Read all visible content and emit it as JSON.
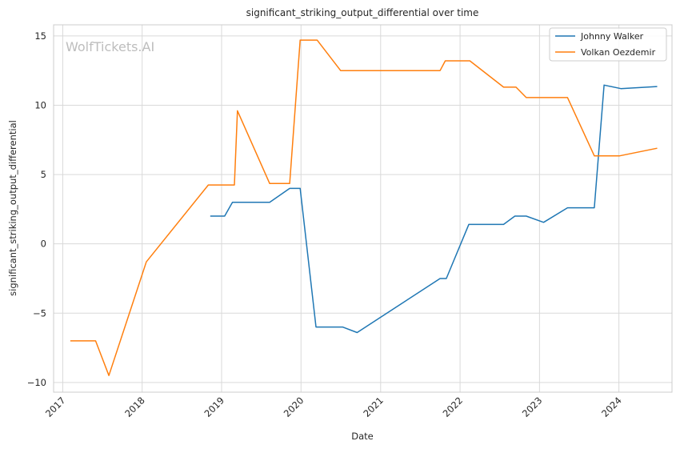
{
  "chart_data": {
    "type": "line",
    "title": "significant_striking_output_differential over time",
    "xlabel": "Date",
    "ylabel": "significant_striking_output_differential",
    "watermark": "WolfTickets.AI",
    "grid": true,
    "legend_position": "top-right",
    "x_ticks": [
      "2017",
      "2018",
      "2019",
      "2020",
      "2021",
      "2022",
      "2023",
      "2024"
    ],
    "y_ticks": [
      "−10",
      "−5",
      "0",
      "5",
      "10",
      "15"
    ],
    "y_tick_values": [
      -10,
      -5,
      0,
      5,
      10,
      15
    ],
    "xlim": [
      "2016-11-20",
      "2024-09-01"
    ],
    "ylim": [
      -10.7,
      15.8
    ],
    "series": [
      {
        "name": "Johnny Walker",
        "color": "#1f77b4",
        "points": [
          [
            "2018-11-10",
            2.0
          ],
          [
            "2019-01-15",
            2.0
          ],
          [
            "2019-02-20",
            3.0
          ],
          [
            "2019-08-10",
            3.0
          ],
          [
            "2019-11-10",
            4.0
          ],
          [
            "2019-12-28",
            4.0
          ],
          [
            "2020-03-10",
            -6.0
          ],
          [
            "2020-07-10",
            -6.0
          ],
          [
            "2020-09-15",
            -6.4
          ],
          [
            "2021-10-01",
            -2.5
          ],
          [
            "2021-10-30",
            -2.5
          ],
          [
            "2022-02-10",
            1.4
          ],
          [
            "2022-07-20",
            1.4
          ],
          [
            "2022-09-10",
            2.0
          ],
          [
            "2022-11-01",
            2.0
          ],
          [
            "2023-01-20",
            1.55
          ],
          [
            "2023-05-10",
            2.6
          ],
          [
            "2023-09-10",
            2.6
          ],
          [
            "2023-10-25",
            11.45
          ],
          [
            "2024-01-10",
            11.2
          ],
          [
            "2024-06-25",
            11.35
          ]
        ]
      },
      {
        "name": "Volkan Oezdemir",
        "color": "#ff7f0e",
        "points": [
          [
            "2017-02-05",
            -7.0
          ],
          [
            "2017-06-01",
            -7.0
          ],
          [
            "2017-08-01",
            -9.5
          ],
          [
            "2018-01-20",
            -1.3
          ],
          [
            "2018-11-01",
            4.25
          ],
          [
            "2019-03-01",
            4.25
          ],
          [
            "2019-03-15",
            9.6
          ],
          [
            "2019-08-10",
            4.35
          ],
          [
            "2019-11-10",
            4.35
          ],
          [
            "2019-12-28",
            14.7
          ],
          [
            "2020-03-15",
            14.7
          ],
          [
            "2020-07-01",
            12.5
          ],
          [
            "2021-10-01",
            12.5
          ],
          [
            "2021-10-25",
            13.2
          ],
          [
            "2022-02-15",
            13.2
          ],
          [
            "2022-07-20",
            11.3
          ],
          [
            "2022-09-15",
            11.3
          ],
          [
            "2022-11-01",
            10.55
          ],
          [
            "2023-05-10",
            10.55
          ],
          [
            "2023-09-10",
            6.35
          ],
          [
            "2024-01-05",
            6.35
          ],
          [
            "2024-06-25",
            6.9
          ]
        ]
      }
    ]
  }
}
